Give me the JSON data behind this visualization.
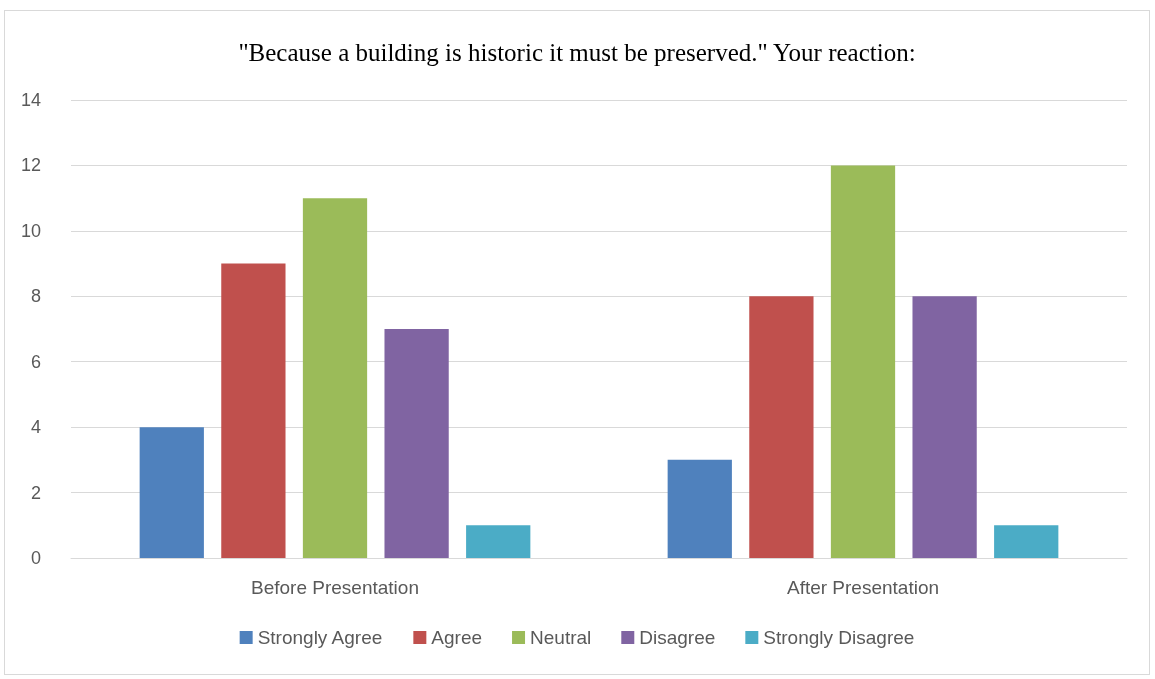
{
  "chart_data": {
    "type": "bar",
    "title": "\"Because a building is historic it must be preserved.\" Your reaction:",
    "categories": [
      "Before Presentation",
      "After Presentation"
    ],
    "series": [
      {
        "name": "Strongly Agree",
        "color": "#4f81bd",
        "values": [
          4,
          3
        ]
      },
      {
        "name": "Agree",
        "color": "#c0504d",
        "values": [
          9,
          8
        ]
      },
      {
        "name": "Neutral",
        "color": "#9bbb59",
        "values": [
          11,
          12
        ]
      },
      {
        "name": "Disagree",
        "color": "#8064a2",
        "values": [
          7,
          8
        ]
      },
      {
        "name": "Strongly Disagree",
        "color": "#4bacc6",
        "values": [
          1,
          1
        ]
      }
    ],
    "ylim": [
      0,
      14
    ],
    "yticks": [
      0,
      2,
      4,
      6,
      8,
      10,
      12,
      14
    ],
    "grid": "y",
    "legend": "bottom"
  }
}
